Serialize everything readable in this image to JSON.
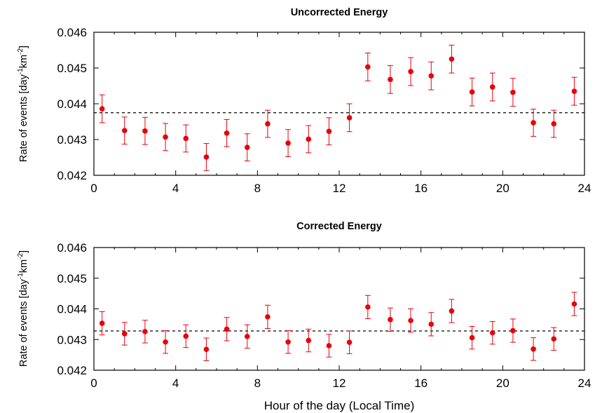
{
  "chart_data": [
    {
      "type": "scatter",
      "title": "Uncorrected Energy",
      "xlabel": "",
      "ylabel_main": "Rate of events [day",
      "ylabel_sup1": "-1",
      "ylabel_mid": "km",
      "ylabel_sup2": "-2",
      "ylabel_end": "]",
      "xlim": [
        0,
        24
      ],
      "ylim": [
        0.042,
        0.046
      ],
      "xticks": [
        0,
        4,
        8,
        12,
        16,
        20,
        24
      ],
      "xtick_labels": [
        "0",
        "4",
        "8",
        "12",
        "16",
        "20",
        "24"
      ],
      "yticks": [
        0.042,
        0.043,
        0.044,
        0.045,
        0.046
      ],
      "ytick_labels": [
        "0.042",
        "0.043",
        "0.044",
        "0.045",
        "0.046"
      ],
      "reference_line": 0.04375,
      "marker_color": "#e8000b",
      "series": [
        {
          "x": [
            0.4,
            1.5,
            2.5,
            3.5,
            4.5,
            5.5,
            6.5,
            7.5,
            8.5,
            9.5,
            10.5,
            11.5,
            12.5,
            13.4,
            14.5,
            15.5,
            16.5,
            17.5,
            18.5,
            19.5,
            20.5,
            21.5,
            22.5,
            23.5
          ],
          "y": [
            0.04386,
            0.04325,
            0.04324,
            0.04307,
            0.04303,
            0.04251,
            0.04318,
            0.04278,
            0.04344,
            0.0429,
            0.04301,
            0.04323,
            0.04361,
            0.04503,
            0.04468,
            0.0449,
            0.04478,
            0.04525,
            0.04433,
            0.04447,
            0.04432,
            0.04347,
            0.04344,
            0.04435
          ],
          "err": [
            0.00039,
            0.00038,
            0.00038,
            0.00038,
            0.00038,
            0.00038,
            0.00038,
            0.00038,
            0.00038,
            0.00038,
            0.00038,
            0.00038,
            0.00039,
            0.00039,
            0.00039,
            0.00039,
            0.00039,
            0.00039,
            0.00039,
            0.00039,
            0.00039,
            0.00038,
            0.00038,
            0.00039
          ]
        }
      ]
    },
    {
      "type": "scatter",
      "title": "Corrected Energy",
      "xlabel": "Hour of the day (Local Time)",
      "ylabel_main": "Rate of events [day",
      "ylabel_sup1": "-1",
      "ylabel_mid": "km",
      "ylabel_sup2": "-2",
      "ylabel_end": "]",
      "xlim": [
        0,
        24
      ],
      "ylim": [
        0.042,
        0.046
      ],
      "xticks": [
        0,
        4,
        8,
        12,
        16,
        20,
        24
      ],
      "xtick_labels": [
        "0",
        "4",
        "8",
        "12",
        "16",
        "20",
        "24"
      ],
      "yticks": [
        0.042,
        0.043,
        0.044,
        0.045,
        0.046
      ],
      "ytick_labels": [
        "0.042",
        "0.043",
        "0.044",
        "0.045",
        "0.046"
      ],
      "reference_line": 0.04328,
      "marker_color": "#e8000b",
      "series": [
        {
          "x": [
            0.4,
            1.5,
            2.5,
            3.5,
            4.5,
            5.5,
            6.5,
            7.5,
            8.5,
            9.5,
            10.5,
            11.5,
            12.5,
            13.4,
            14.5,
            15.5,
            16.5,
            17.5,
            18.5,
            19.5,
            20.5,
            21.5,
            22.5,
            23.5
          ],
          "y": [
            0.04353,
            0.04319,
            0.04326,
            0.04292,
            0.04311,
            0.04268,
            0.04334,
            0.0431,
            0.04374,
            0.04292,
            0.04297,
            0.0428,
            0.04291,
            0.04406,
            0.04365,
            0.04362,
            0.0435,
            0.04393,
            0.04306,
            0.04322,
            0.04329,
            0.04269,
            0.04302,
            0.04416
          ],
          "err": [
            0.00038,
            0.00037,
            0.00037,
            0.00037,
            0.00037,
            0.00037,
            0.00038,
            0.00038,
            0.00038,
            0.00037,
            0.00037,
            0.00037,
            0.00037,
            0.00038,
            0.00038,
            0.00038,
            0.00038,
            0.00038,
            0.00037,
            0.00037,
            0.00038,
            0.00037,
            0.00037,
            0.00038
          ]
        }
      ]
    }
  ]
}
